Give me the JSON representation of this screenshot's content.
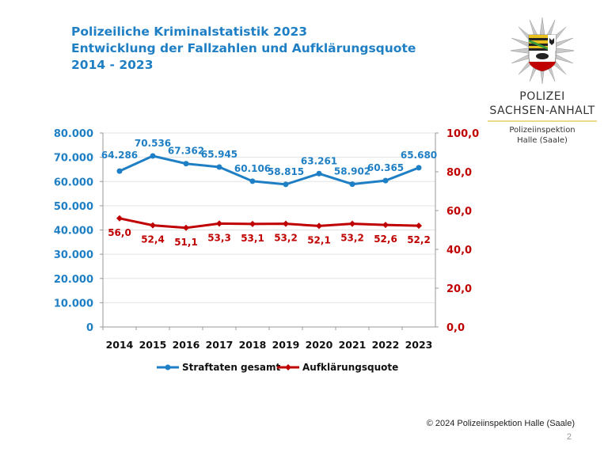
{
  "title": {
    "line1": "Polizeiliche Kriminalstatistik 2023",
    "line2": "Entwicklung der Fallzahlen und Aufklärungsquote",
    "line3": "2014 - 2023"
  },
  "logo": {
    "org_line1": "POLIZEI",
    "org_line2": "SACHSEN-ANHALT",
    "unit_line1": "Polizeiinspektion",
    "unit_line2": "Halle (Saale)"
  },
  "footer": {
    "copyright": "© 2024 Polizeiinspektion Halle (Saale)",
    "page_number": "2"
  },
  "chart_data": {
    "type": "line",
    "categories": [
      "2014",
      "2015",
      "2016",
      "2017",
      "2018",
      "2019",
      "2020",
      "2021",
      "2022",
      "2023"
    ],
    "y_left": {
      "range": [
        0,
        80000
      ],
      "ticks": [
        "0",
        "10.000",
        "20.000",
        "30.000",
        "40.000",
        "50.000",
        "60.000",
        "70.000",
        "80.000"
      ],
      "color": "#1f7fc4"
    },
    "y_right": {
      "range": [
        0,
        100
      ],
      "ticks": [
        "0,0",
        "20,0",
        "40,0",
        "60,0",
        "80,0",
        "100,0"
      ],
      "color": "#c00000"
    },
    "grid": true,
    "legend_position": "bottom",
    "series": [
      {
        "name": "Straftaten gesamt",
        "axis": "left",
        "color": "#1f7fc4",
        "values": [
          64286,
          70536,
          67362,
          65945,
          60106,
          58815,
          63261,
          58902,
          60365,
          65680
        ],
        "labels": [
          "64.286",
          "70.536",
          "67.362",
          "65.945",
          "60.106",
          "58.815",
          "63.261",
          "58.902",
          "60.365",
          "65.680"
        ]
      },
      {
        "name": "Aufklärungsquote",
        "axis": "right",
        "color": "#c00000",
        "values": [
          56.0,
          52.4,
          51.1,
          53.3,
          53.1,
          53.2,
          52.1,
          53.2,
          52.6,
          52.2
        ],
        "labels": [
          "56,0",
          "52,4",
          "51,1",
          "53,3",
          "53,1",
          "53,2",
          "52,1",
          "53,2",
          "52,6",
          "52,2"
        ]
      }
    ]
  }
}
